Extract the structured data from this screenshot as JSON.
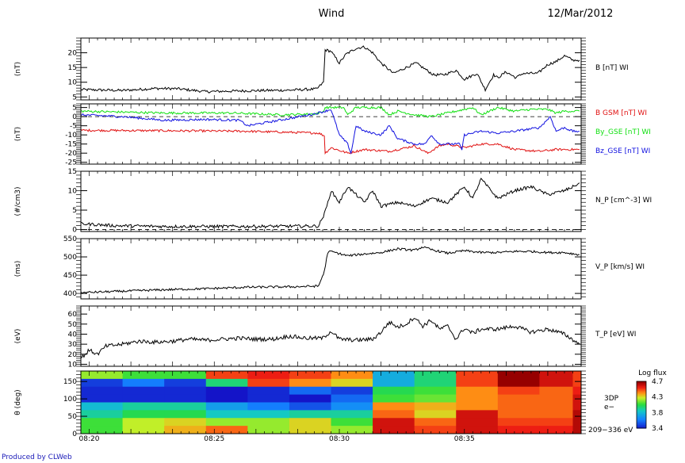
{
  "header": {
    "title": "Wind",
    "date": "12/Mar/2012"
  },
  "footer": "Produced by CLWeb",
  "time_ticks": [
    "08:20",
    "08:25",
    "08:30",
    "08:35"
  ],
  "chart_data": [
    {
      "type": "line",
      "ylabel": "(nT)",
      "ylim": [
        4,
        25
      ],
      "yticks": [
        5,
        10,
        15,
        20
      ],
      "series": [
        {
          "name": "B [nT] WI",
          "color": "#000000",
          "x": [
            0,
            5,
            9,
            11.5,
            15,
            20,
            25,
            28.3,
            29.1,
            29.3,
            30,
            31,
            31.8,
            33,
            34,
            35,
            36,
            37.5,
            39,
            40.2,
            41,
            42.3,
            43.5,
            45,
            46,
            47.5,
            48.5,
            49.5,
            50,
            51,
            52.2,
            53,
            54.8,
            56,
            57,
            58,
            59,
            59.8
          ],
          "y": [
            7.5,
            7.2,
            7.9,
            7.8,
            6.8,
            7.1,
            7.3,
            7.7,
            10,
            21,
            20.5,
            16.5,
            19.5,
            21.5,
            22,
            20,
            16.5,
            13,
            15,
            16.5,
            15,
            12.5,
            12.5,
            14,
            11,
            13,
            7.5,
            12.5,
            11.5,
            13.5,
            11.5,
            13,
            13,
            16,
            17,
            19,
            17.5,
            17.5
          ]
        }
      ],
      "legend": [
        {
          "label": "B [nT] WI",
          "color": "#000000"
        }
      ]
    },
    {
      "type": "line",
      "ylabel": "(nT)",
      "ylim": [
        -26,
        7
      ],
      "yticks": [
        5,
        0,
        -5,
        -10,
        -15,
        -20,
        -25
      ],
      "zero_line": true,
      "series": [
        {
          "name": "B GSM [nT] WI",
          "color": "#e01010",
          "x": [
            0,
            10,
            20,
            28.5,
            29.2,
            29.3,
            30,
            32,
            34,
            37,
            40,
            41.6,
            43,
            44,
            46,
            48,
            50,
            52,
            55,
            57,
            59.8
          ],
          "y": [
            -7.5,
            -7.7,
            -8,
            -9,
            -10.5,
            -20,
            -17,
            -20,
            -18,
            -19,
            -16,
            -20,
            -16,
            -15,
            -17,
            -15,
            -15,
            -18,
            -19,
            -18,
            -18
          ]
        },
        {
          "name": "By_GSE [nT] WI",
          "color": "#10e010",
          "x": [
            0,
            10,
            18,
            24,
            28,
            29,
            29.3,
            30,
            31.5,
            32,
            33,
            36,
            37,
            38,
            40,
            42,
            44,
            45,
            47,
            48,
            50,
            52,
            54,
            56,
            57,
            58,
            59,
            59.8
          ],
          "y": [
            3,
            2,
            2,
            1,
            1.5,
            2.5,
            5,
            5,
            5,
            1,
            5,
            5,
            1,
            3,
            1,
            0,
            2,
            3,
            5,
            1,
            5,
            3,
            4,
            4,
            2,
            3,
            3,
            3
          ]
        },
        {
          "name": "Bz_GSE [nT] WI",
          "color": "#1010e0",
          "x": [
            0,
            5,
            10,
            15,
            19,
            20,
            25,
            28,
            29.3,
            30,
            31,
            32,
            32.4,
            33,
            34,
            36,
            37,
            38,
            40,
            41.3,
            42,
            43,
            44,
            45.4,
            45.7,
            46,
            48,
            50,
            52,
            55,
            56.3,
            57,
            58,
            59,
            59.8
          ],
          "y": [
            1,
            0,
            -2,
            -1.5,
            -2,
            -5,
            -1,
            1.5,
            3,
            4,
            -10,
            -15,
            -20,
            -5,
            -8,
            -10,
            -5,
            -12,
            -15,
            -15,
            -10,
            -15,
            -15,
            -15,
            -18,
            -10,
            -8,
            -9,
            -8,
            -6,
            0,
            -8,
            -6,
            -8,
            -8
          ]
        }
      ],
      "legend": [
        {
          "label": "B GSM [nT] WI",
          "color": "#e01010"
        },
        {
          "label": "By_GSE [nT] WI",
          "color": "#10e010"
        },
        {
          "label": "Bz_GSE [nT] WI",
          "color": "#1010e0"
        }
      ]
    },
    {
      "type": "line",
      "ylabel": "(#/cm3)",
      "ylim": [
        -0.5,
        15
      ],
      "yticks": [
        0,
        5,
        10,
        15
      ],
      "zero_line": true,
      "series": [
        {
          "name": "N_P [cm^-3] WI",
          "color": "#000000",
          "x": [
            0,
            4,
            10,
            20,
            28.5,
            29.2,
            29.5,
            30,
            31,
            32,
            33,
            34,
            35,
            36,
            38,
            40,
            42,
            44,
            46,
            47,
            48,
            50,
            52,
            54,
            56,
            58,
            59,
            59.8
          ],
          "y": [
            1.5,
            1,
            0.8,
            0.8,
            0.9,
            4,
            6,
            10,
            7,
            11,
            9,
            7,
            10,
            6,
            7,
            6,
            8,
            7,
            11,
            8,
            13,
            8,
            10,
            11,
            9,
            10,
            11,
            12
          ]
        }
      ],
      "legend": [
        {
          "label": "N_P [cm^-3] WI",
          "color": "#000000"
        }
      ]
    },
    {
      "type": "line",
      "ylabel": "(ms)",
      "ylim": [
        385,
        550
      ],
      "yticks": [
        400,
        450,
        500,
        550
      ],
      "series": [
        {
          "name": "V_P [km/s] WI",
          "color": "#000000",
          "x": [
            0,
            5,
            10,
            15,
            20,
            25,
            28.5,
            29.2,
            29.6,
            30,
            32,
            34,
            36,
            38,
            40,
            41,
            42,
            44,
            46,
            48,
            50,
            52,
            54,
            56,
            58,
            59.8
          ],
          "y": [
            402,
            406,
            410,
            413,
            417,
            418,
            420,
            460,
            512,
            515,
            503,
            508,
            512,
            522,
            518,
            527,
            520,
            510,
            517,
            512,
            512,
            515,
            515,
            512,
            512,
            506
          ]
        }
      ],
      "legend": [
        {
          "label": "V_P [km/s] WI",
          "color": "#000000"
        }
      ]
    },
    {
      "type": "line",
      "ylabel": "(eV)",
      "ylim": [
        8,
        68
      ],
      "yticks": [
        10,
        20,
        30,
        40,
        50,
        60
      ],
      "series": [
        {
          "name": "T_P [eV] WI",
          "color": "#000000",
          "x": [
            0,
            1,
            2,
            3,
            5,
            7,
            9,
            11,
            13,
            15,
            17,
            19,
            21,
            23,
            25,
            27,
            29,
            30,
            31,
            33,
            35,
            36,
            37,
            38,
            39,
            40,
            41,
            42,
            43,
            44,
            45,
            46,
            47,
            48,
            50,
            52,
            54,
            56,
            58,
            59.8
          ],
          "y": [
            16,
            24,
            20,
            28,
            30,
            33,
            32,
            33,
            35,
            34,
            35,
            36,
            35,
            35,
            38,
            36,
            36,
            43,
            35,
            34,
            35,
            42,
            52,
            47,
            50,
            57,
            48,
            54,
            45,
            48,
            35,
            46,
            41,
            45,
            45,
            48,
            42,
            45,
            40,
            30
          ]
        }
      ],
      "legend": [
        {
          "label": "T_P [eV] WI",
          "color": "#000000"
        }
      ]
    },
    {
      "type": "heatmap",
      "ylabel": "θ (deg)",
      "ylim": [
        0,
        180
      ],
      "yticks": [
        0,
        50,
        100,
        150
      ],
      "label_lines": [
        "3DP",
        "e−",
        "209−336 eV"
      ],
      "colorbar": {
        "title": "Log flux",
        "min": 3.4,
        "max": 4.7,
        "ticks": [
          "4.7",
          "4.3",
          "3.8",
          "3.4"
        ]
      },
      "x_edges": [
        0,
        5,
        10,
        15,
        20,
        25,
        30,
        35,
        40,
        45,
        50,
        55,
        59,
        60
      ],
      "rows_top_to_bottom": [
        [
          4.2,
          4.1,
          4.1,
          4.5,
          4.55,
          4.5,
          4.4,
          3.8,
          4.0,
          4.5,
          4.7,
          4.6,
          4.5
        ],
        [
          3.5,
          3.65,
          3.5,
          4.0,
          4.5,
          4.4,
          4.3,
          3.8,
          4.0,
          4.5,
          4.7,
          4.6,
          4.5
        ],
        [
          3.45,
          3.45,
          3.45,
          3.4,
          3.45,
          3.6,
          3.5,
          4.05,
          4.1,
          4.4,
          4.5,
          4.45,
          4.55
        ],
        [
          3.45,
          3.45,
          3.45,
          3.35,
          3.45,
          3.4,
          3.6,
          4.1,
          4.15,
          4.4,
          4.45,
          4.45,
          4.6
        ],
        [
          3.85,
          3.95,
          3.95,
          3.75,
          3.65,
          3.55,
          3.7,
          4.4,
          4.35,
          4.4,
          4.45,
          4.45,
          4.6
        ],
        [
          3.95,
          4.05,
          4.05,
          3.9,
          3.9,
          3.95,
          3.95,
          4.45,
          4.3,
          4.6,
          4.45,
          4.45,
          4.65
        ],
        [
          4.1,
          4.25,
          4.3,
          4.2,
          4.2,
          4.3,
          4.1,
          4.6,
          4.45,
          4.6,
          4.5,
          4.5,
          4.65
        ],
        [
          4.1,
          4.25,
          4.35,
          4.45,
          4.2,
          4.3,
          4.2,
          4.6,
          4.5,
          4.6,
          4.55,
          4.55,
          4.65
        ]
      ]
    }
  ]
}
